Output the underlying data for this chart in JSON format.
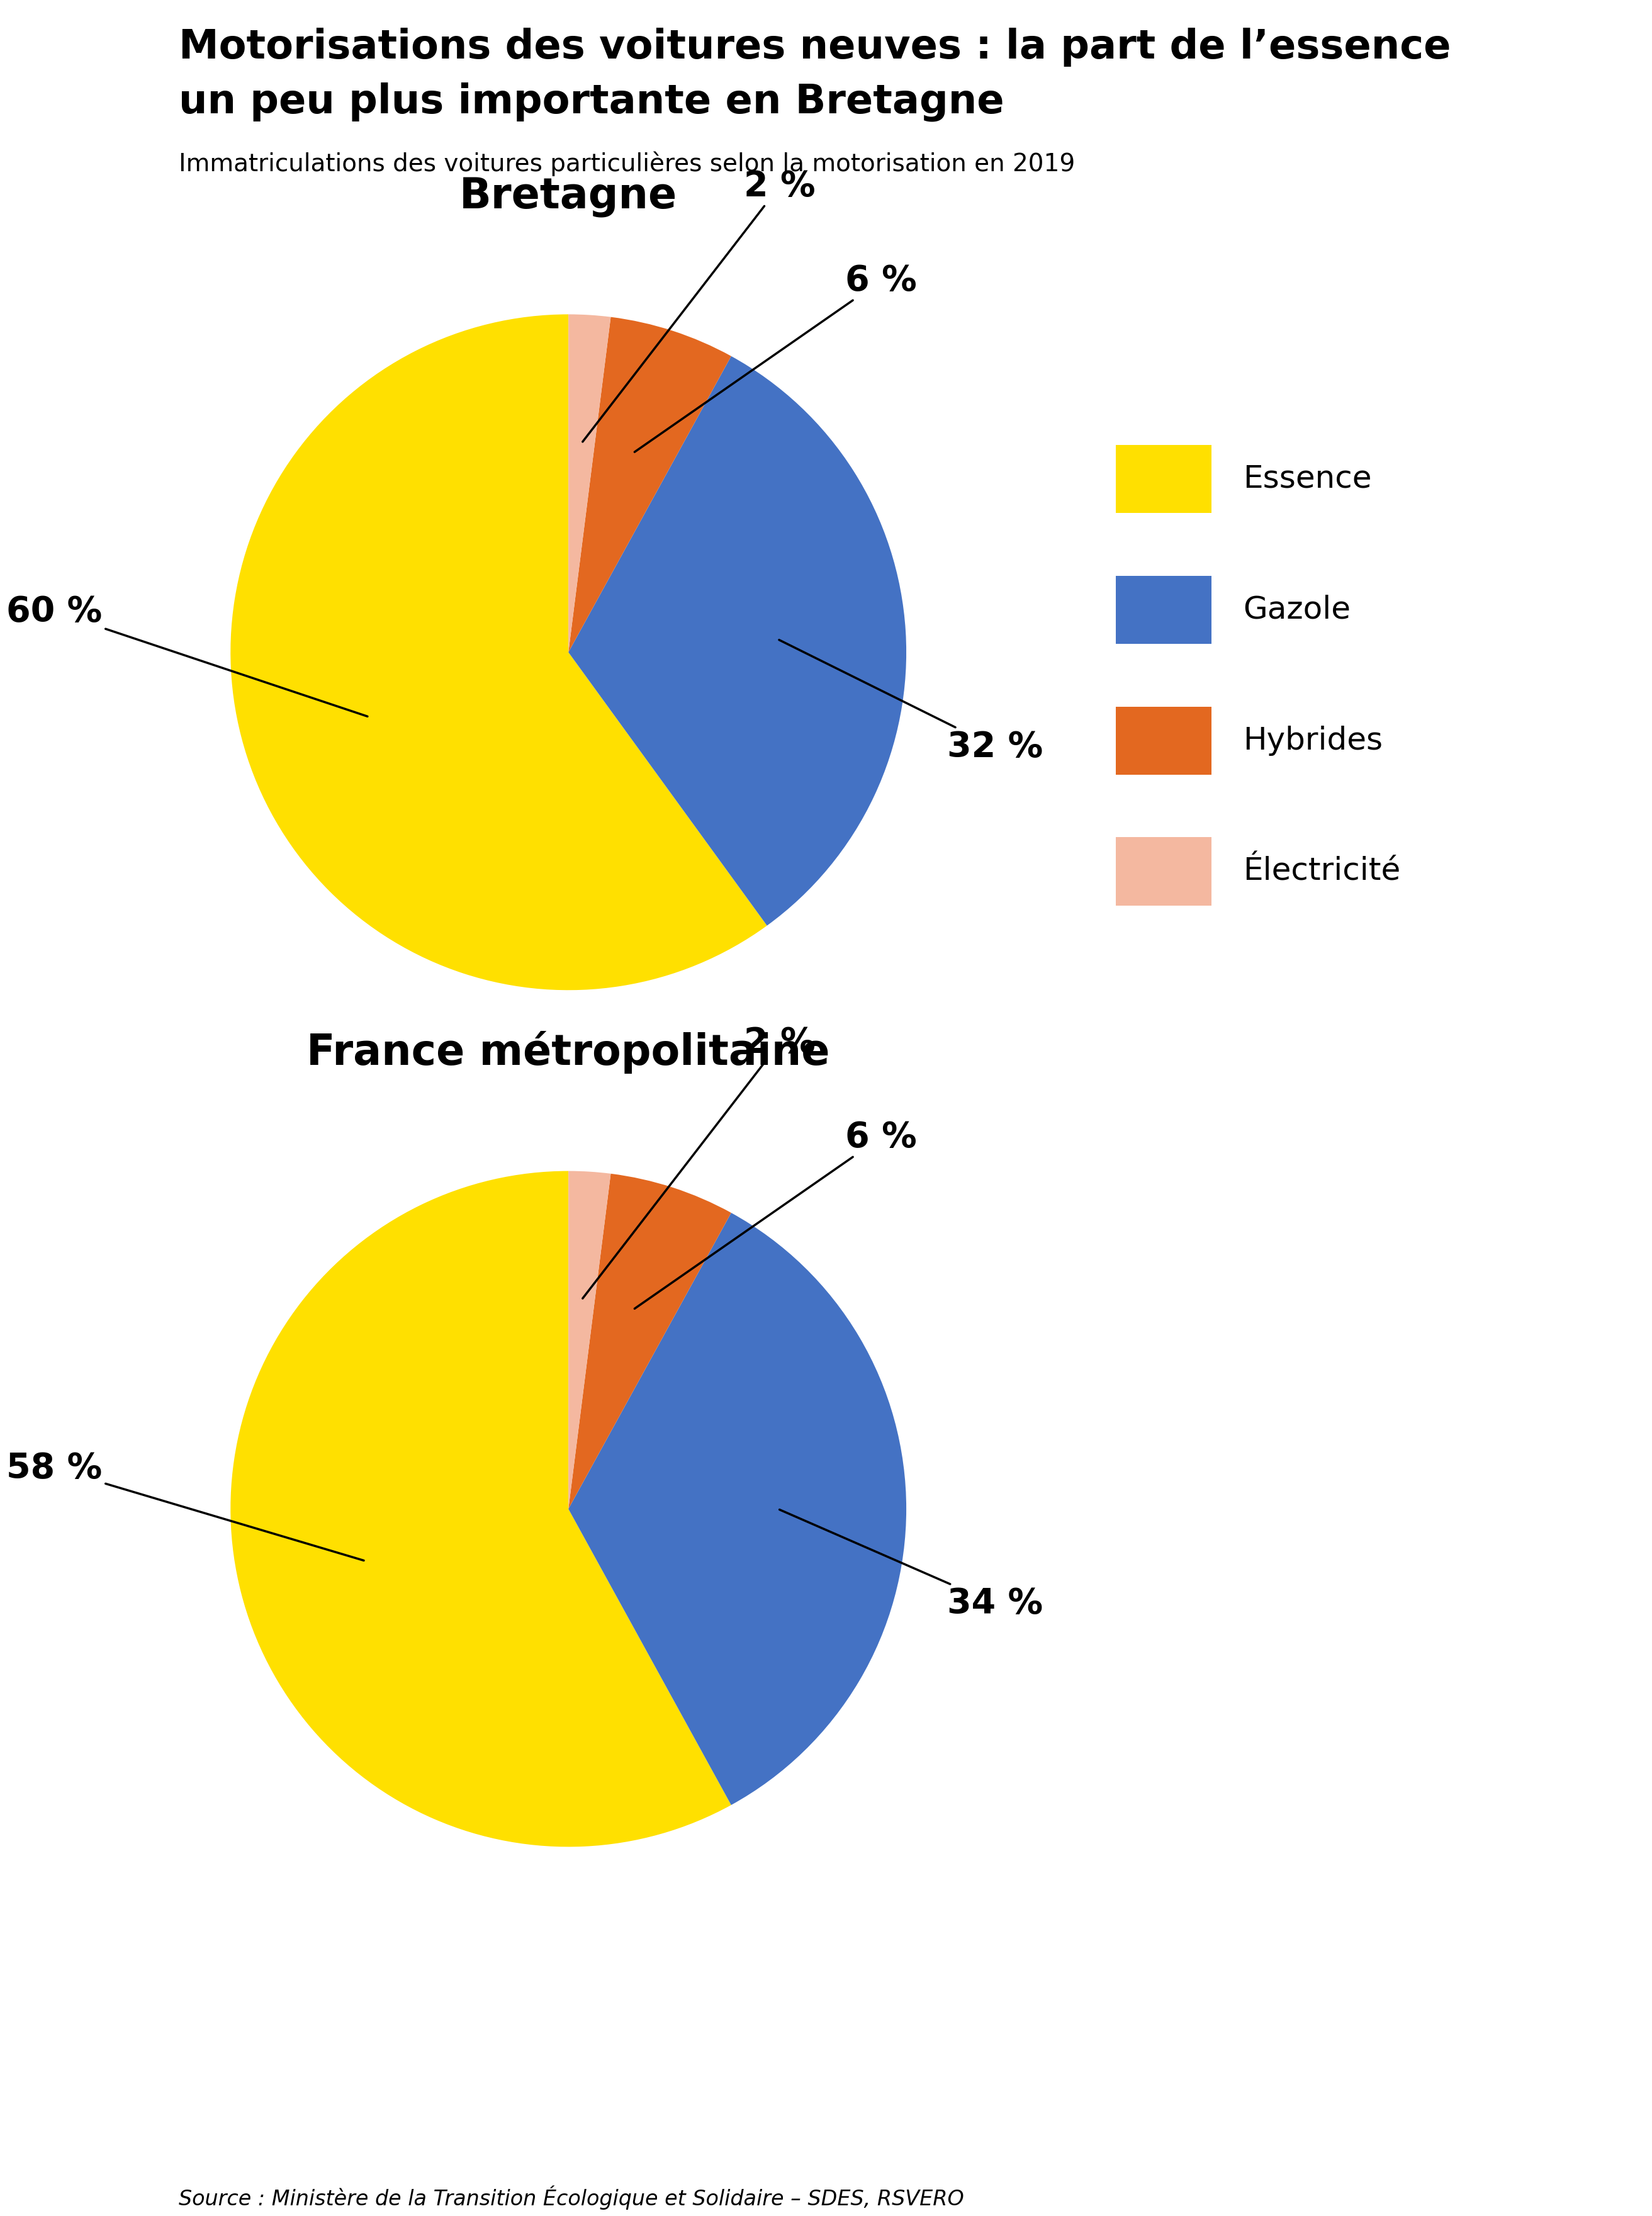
{
  "title_line1": "Motorisations des voitures neuves : la part de l’essence",
  "title_line2": "un peu plus importante en Bretagne",
  "subtitle": "Immatriculations des voitures particulières selon la motorisation en 2019",
  "source": "Source : Ministère de la Transition Écologique et Solidaire – SDES, RSVERO",
  "chart1_title": "Bretagne",
  "chart2_title": "France métropolitaine",
  "colors": {
    "Essence": "#FFE000",
    "Gazole": "#4472C4",
    "Hybrides": "#E36820",
    "Electricite": "#F4B8A0"
  },
  "legend_labels": [
    "Essence",
    "Gazole",
    "Hybrides",
    "Électricité"
  ],
  "bretagne_values": [
    60,
    32,
    6,
    2
  ],
  "france_values": [
    58,
    34,
    6,
    2
  ],
  "accent_color": "#FFE000",
  "background_color": "#FFFFFF"
}
